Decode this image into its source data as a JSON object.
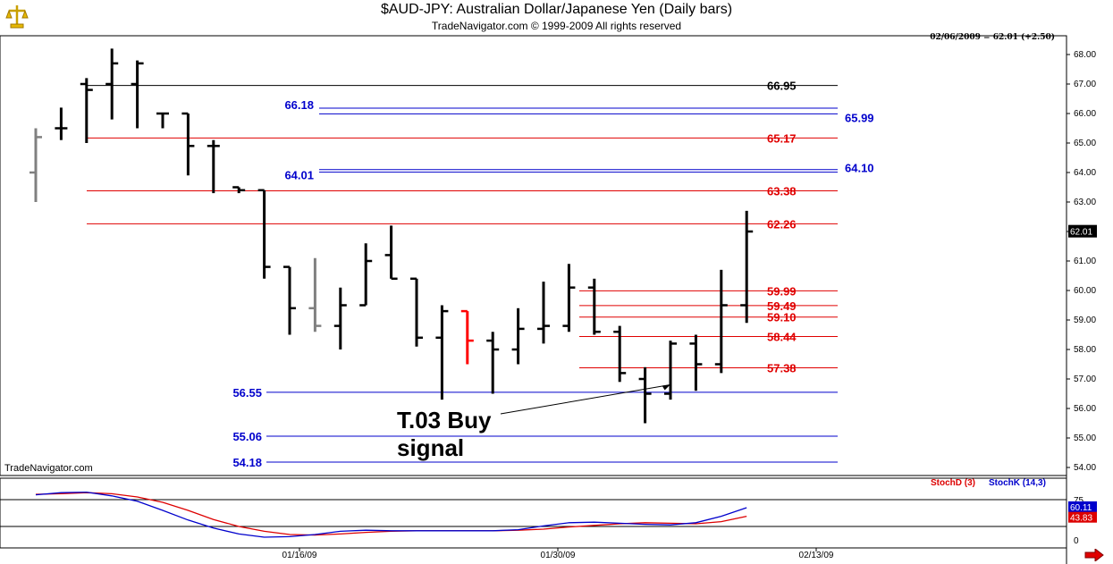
{
  "header": {
    "title": "$AUD-JPY:  Australian Dollar/Japanese Yen  (Daily bars)",
    "subtitle": "TradeNavigator.com © 1999-2009 All rights reserved",
    "quote": "02/06/2009 = 62.01 (+2.50)",
    "watermark": "TradeNavigator.com"
  },
  "colors": {
    "bar_black": "#000000",
    "bar_grey": "#808080",
    "bar_red": "#ff0000",
    "level_red": "#e00000",
    "level_blue": "#0000cc",
    "level_black": "#000000",
    "stochD": "#dd0000",
    "stochK": "#0000cc",
    "annotation": "#000000"
  },
  "icons": {
    "logo": "gold-scale-icon",
    "scroll": "red-right-arrow-icon"
  },
  "chart_data": [
    {
      "type": "ohlc",
      "title": "$AUD-JPY:  Australian Dollar/Japanese Yen  (Daily bars)",
      "ylim": [
        53.7,
        68.5
      ],
      "y_ticks": [
        "54.00",
        "55.00",
        "56.00",
        "57.00",
        "58.00",
        "59.00",
        "60.00",
        "61.00",
        "62.00",
        "63.00",
        "64.00",
        "65.00",
        "66.00",
        "67.00",
        "68.00"
      ],
      "x_ticks": [
        "01/16/09",
        "01/30/09",
        "02/13/09"
      ],
      "last_price_label": "62.01",
      "bars": [
        {
          "o": 64.0,
          "h": 65.5,
          "l": 63.0,
          "c": 65.2,
          "color": "grey"
        },
        {
          "o": 65.5,
          "h": 66.2,
          "l": 65.1,
          "c": 65.5,
          "color": "black"
        },
        {
          "o": 67.0,
          "h": 67.2,
          "l": 65.0,
          "c": 66.8,
          "color": "black"
        },
        {
          "o": 67.0,
          "h": 68.2,
          "l": 65.8,
          "c": 67.7,
          "color": "black"
        },
        {
          "o": 67.0,
          "h": 67.8,
          "l": 65.5,
          "c": 67.7,
          "color": "black"
        },
        {
          "o": 66.0,
          "h": 66.0,
          "l": 65.5,
          "c": 66.0,
          "color": "black"
        },
        {
          "o": 66.0,
          "h": 66.0,
          "l": 63.9,
          "c": 64.9,
          "color": "black"
        },
        {
          "o": 64.9,
          "h": 65.1,
          "l": 63.3,
          "c": 64.9,
          "color": "black"
        },
        {
          "o": 63.5,
          "h": 63.5,
          "l": 63.3,
          "c": 63.4,
          "color": "black"
        },
        {
          "o": 63.4,
          "h": 63.4,
          "l": 60.4,
          "c": 60.8,
          "color": "black"
        },
        {
          "o": 60.8,
          "h": 60.8,
          "l": 58.5,
          "c": 59.4,
          "color": "black"
        },
        {
          "o": 59.4,
          "h": 61.1,
          "l": 58.6,
          "c": 58.8,
          "color": "grey"
        },
        {
          "o": 58.8,
          "h": 60.1,
          "l": 58.0,
          "c": 59.5,
          "color": "black"
        },
        {
          "o": 59.5,
          "h": 61.6,
          "l": 59.5,
          "c": 61.0,
          "color": "black"
        },
        {
          "o": 61.2,
          "h": 62.2,
          "l": 60.4,
          "c": 60.4,
          "color": "black"
        },
        {
          "o": 60.4,
          "h": 60.4,
          "l": 58.1,
          "c": 58.4,
          "color": "black"
        },
        {
          "o": 58.4,
          "h": 59.5,
          "l": 56.3,
          "c": 59.3,
          "color": "black"
        },
        {
          "o": 59.3,
          "h": 59.3,
          "l": 57.5,
          "c": 58.3,
          "color": "red"
        },
        {
          "o": 58.3,
          "h": 58.6,
          "l": 56.5,
          "c": 58.0,
          "color": "black"
        },
        {
          "o": 58.0,
          "h": 59.4,
          "l": 57.5,
          "c": 58.7,
          "color": "black"
        },
        {
          "o": 58.7,
          "h": 60.3,
          "l": 58.2,
          "c": 58.8,
          "color": "black"
        },
        {
          "o": 58.8,
          "h": 60.9,
          "l": 58.6,
          "c": 60.1,
          "color": "black"
        },
        {
          "o": 60.1,
          "h": 60.4,
          "l": 58.5,
          "c": 58.6,
          "color": "black"
        },
        {
          "o": 58.6,
          "h": 58.8,
          "l": 56.9,
          "c": 57.2,
          "color": "black"
        },
        {
          "o": 57.0,
          "h": 57.4,
          "l": 55.5,
          "c": 56.5,
          "color": "black"
        },
        {
          "o": 56.5,
          "h": 58.3,
          "l": 56.3,
          "c": 58.2,
          "color": "black"
        },
        {
          "o": 58.2,
          "h": 58.5,
          "l": 56.6,
          "c": 57.5,
          "color": "black"
        },
        {
          "o": 57.5,
          "h": 60.7,
          "l": 57.2,
          "c": 59.5,
          "color": "black"
        },
        {
          "o": 59.5,
          "h": 62.7,
          "l": 58.9,
          "c": 62.0,
          "color": "black"
        }
      ],
      "levels": [
        {
          "value": 66.95,
          "label": "66.95",
          "color": "black",
          "label_side": "right"
        },
        {
          "value": 66.18,
          "label": "66.18",
          "color": "blue",
          "label_side": "left"
        },
        {
          "value": 65.99,
          "label": "65.99",
          "color": "blue",
          "label_side": "far-right"
        },
        {
          "value": 65.17,
          "label": "65.17",
          "color": "red",
          "label_side": "right"
        },
        {
          "value": 64.01,
          "label": "64.01",
          "color": "blue",
          "label_side": "left"
        },
        {
          "value": 64.1,
          "label": "64.10",
          "color": "blue",
          "label_side": "far-right"
        },
        {
          "value": 63.38,
          "label": "63.38",
          "color": "red",
          "label_side": "right"
        },
        {
          "value": 62.26,
          "label": "62.26",
          "color": "red",
          "label_side": "right"
        },
        {
          "value": 59.99,
          "label": "59.99",
          "color": "red",
          "label_side": "right"
        },
        {
          "value": 59.49,
          "label": "59.49",
          "color": "red",
          "label_side": "right"
        },
        {
          "value": 59.1,
          "label": "59.10",
          "color": "red",
          "label_side": "right"
        },
        {
          "value": 58.44,
          "label": "58.44",
          "color": "red",
          "label_side": "right"
        },
        {
          "value": 57.38,
          "label": "57.38",
          "color": "red",
          "label_side": "right"
        },
        {
          "value": 56.55,
          "label": "56.55",
          "color": "blue",
          "label_side": "left"
        },
        {
          "value": 55.06,
          "label": "55.06",
          "color": "blue",
          "label_side": "left"
        },
        {
          "value": 54.18,
          "label": "54.18",
          "color": "blue",
          "label_side": "left"
        }
      ],
      "annotation": {
        "line1": "T.03 Buy",
        "line2": "signal",
        "points_to_bar": 24
      }
    },
    {
      "type": "line",
      "legend": [
        "StochD (3)",
        "StochK (14,3)"
      ],
      "ylim": [
        0,
        100
      ],
      "y_ticks": [
        "0",
        "75"
      ],
      "levels": [
        25,
        75
      ],
      "last_labels": {
        "stochK": "60.11",
        "stochD": "43.83"
      },
      "series": [
        {
          "name": "StochD (3)",
          "values": [
            85,
            86,
            88,
            86,
            80,
            70,
            55,
            38,
            25,
            16,
            10,
            9,
            11,
            14,
            16,
            17,
            17,
            17,
            17,
            18,
            20,
            24,
            27,
            30,
            32,
            31,
            30,
            34,
            44
          ]
        },
        {
          "name": "StochK (14,3)",
          "values": [
            84,
            88,
            89,
            82,
            72,
            55,
            37,
            22,
            11,
            5,
            6,
            10,
            16,
            18,
            17,
            17,
            17,
            17,
            17,
            19,
            26,
            32,
            33,
            31,
            29,
            28,
            32,
            44,
            60
          ]
        }
      ]
    }
  ]
}
